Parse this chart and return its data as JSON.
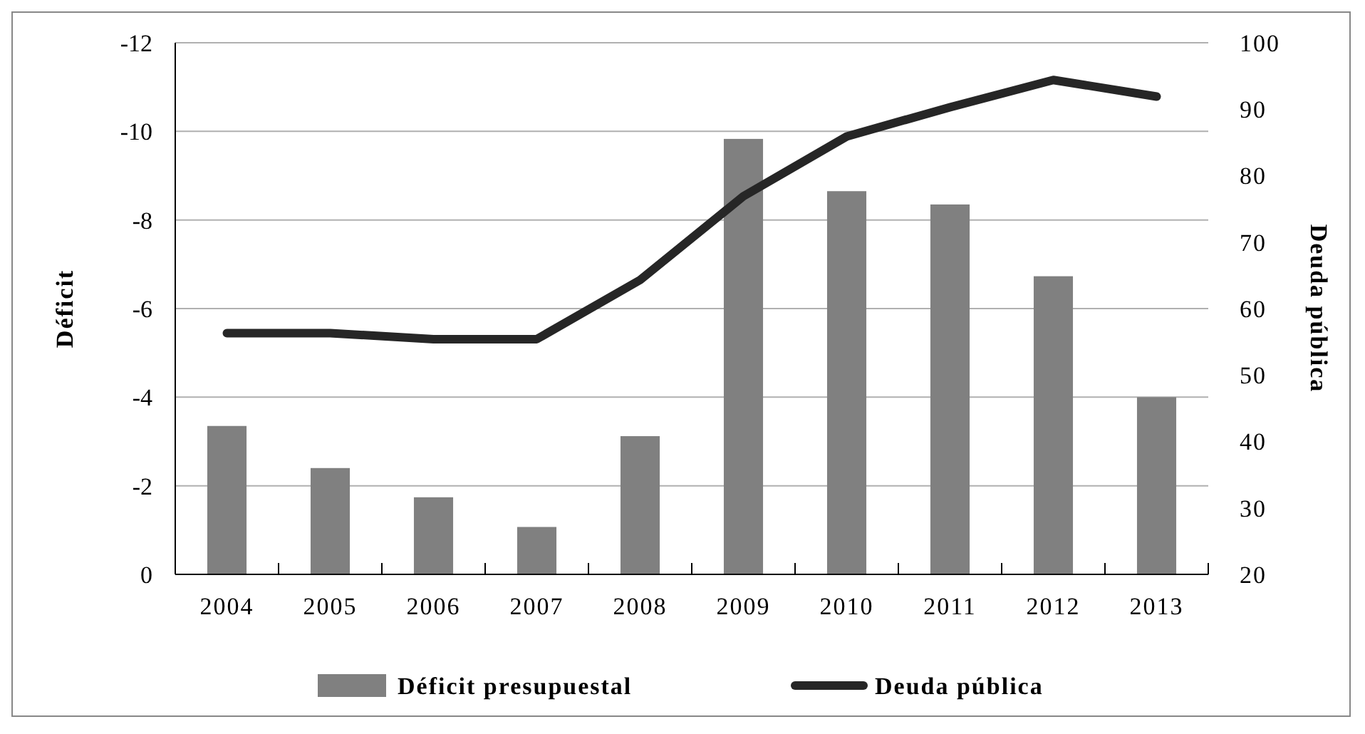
{
  "chart_data": {
    "type": "bar",
    "ylabel": "Déficit",
    "y2label": "Deuda pública",
    "categories": [
      "2004",
      "2005",
      "2006",
      "2007",
      "2008",
      "2009",
      "2010",
      "2011",
      "2012",
      "2013"
    ],
    "series": [
      {
        "name": "Déficit presupuestal",
        "color": "#808080",
        "values": [
          -3.35,
          -2.4,
          -1.74,
          -1.07,
          -3.12,
          -9.83,
          -8.65,
          -8.35,
          -6.73,
          -4.0
        ]
      },
      {
        "name": "Deuda pública",
        "type": "line",
        "axis": "y2",
        "color": "#262626",
        "values": [
          56.3,
          56.3,
          55.4,
          55.4,
          64.3,
          76.9,
          85.9,
          90.3,
          94.4,
          91.9
        ]
      }
    ],
    "ylim": [
      0,
      -12
    ],
    "yticks": [
      0,
      -2,
      -4,
      -6,
      -8,
      -10,
      -12
    ],
    "y2lim": [
      20,
      100
    ],
    "y2ticks": [
      20,
      30,
      40,
      50,
      60,
      70,
      80,
      90,
      100
    ],
    "grid": "y",
    "legend": "bottom",
    "marker": "none",
    "line_style": "solid"
  }
}
